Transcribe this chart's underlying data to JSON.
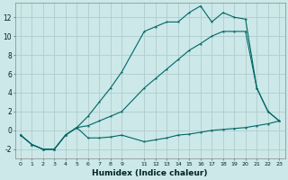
{
  "xlabel": "Humidex (Indice chaleur)",
  "bg_color": "#cce8e8",
  "grid_color": "#b0cccc",
  "line_color": "#006666",
  "xlim": [
    -0.5,
    23.5
  ],
  "ylim": [
    -3.0,
    13.5
  ],
  "y_ticks": [
    -2,
    0,
    2,
    4,
    6,
    8,
    10,
    12
  ],
  "x_ticks": [
    0,
    1,
    2,
    3,
    4,
    5,
    6,
    7,
    8,
    9,
    11,
    12,
    13,
    14,
    15,
    16,
    17,
    18,
    19,
    20,
    21,
    22,
    23
  ],
  "line1_x": [
    0,
    1,
    2,
    3,
    4,
    5,
    6,
    7,
    8,
    9,
    11,
    12,
    13,
    14,
    15,
    16,
    17,
    18,
    19,
    20,
    21,
    22,
    23
  ],
  "line1_y": [
    -0.5,
    -1.5,
    -2.0,
    -2.0,
    -0.5,
    0.3,
    1.5,
    3.0,
    4.5,
    6.2,
    10.5,
    11.0,
    11.5,
    11.5,
    12.5,
    13.2,
    11.5,
    12.5,
    12.0,
    11.8,
    4.5,
    2.0,
    1.0
  ],
  "line2_x": [
    0,
    1,
    2,
    3,
    4,
    5,
    6,
    7,
    8,
    9,
    11,
    12,
    13,
    14,
    15,
    16,
    17,
    18,
    19,
    20,
    21,
    22,
    23
  ],
  "line2_y": [
    -0.5,
    -1.5,
    -2.0,
    -2.0,
    -0.5,
    0.3,
    0.5,
    1.0,
    1.5,
    2.0,
    4.5,
    5.5,
    6.5,
    7.5,
    8.5,
    9.2,
    10.0,
    10.5,
    10.5,
    10.5,
    4.5,
    2.0,
    1.0
  ],
  "line3_x": [
    0,
    1,
    2,
    3,
    4,
    5,
    6,
    7,
    8,
    9,
    11,
    12,
    13,
    14,
    15,
    16,
    17,
    18,
    19,
    20,
    21,
    22,
    23
  ],
  "line3_y": [
    -0.5,
    -1.5,
    -2.0,
    -2.0,
    -0.5,
    0.3,
    -0.8,
    -0.8,
    -0.7,
    -0.5,
    -1.2,
    -1.0,
    -0.8,
    -0.5,
    -0.4,
    -0.2,
    0.0,
    0.1,
    0.2,
    0.3,
    0.5,
    0.7,
    1.0
  ]
}
